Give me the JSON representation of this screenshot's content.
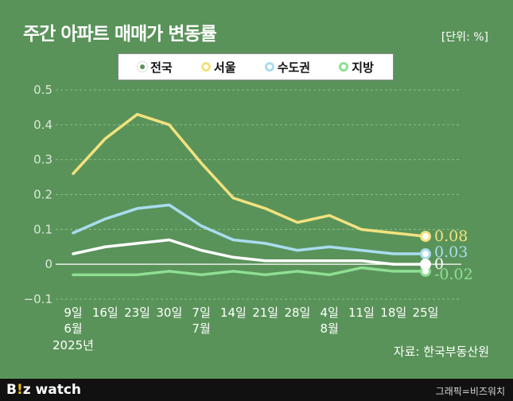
{
  "header": {
    "title": "주간 아파트 매매가 변동률",
    "unit": "[단위: %]"
  },
  "chart_data": {
    "type": "line",
    "title": "주간 아파트 매매가 변동률",
    "unit_label": "[단위: %]",
    "x": [
      "9일",
      "16일",
      "23일",
      "30일",
      "7일",
      "14일",
      "21일",
      "28일",
      "4일",
      "11일",
      "18일",
      "25일"
    ],
    "month_labels": [
      {
        "index": 0,
        "label": "6월"
      },
      {
        "index": 4,
        "label": "7월"
      },
      {
        "index": 8,
        "label": "8월"
      }
    ],
    "year_label": "2025년",
    "yticks": [
      0.5,
      0.4,
      0.3,
      0.2,
      0.1,
      0,
      -0.1
    ],
    "ytick_labels": [
      "0.5",
      "0.4",
      "0.3",
      "0.2",
      "0.1",
      "0",
      "−0.1"
    ],
    "ylim": [
      -0.1,
      0.5
    ],
    "series": [
      {
        "name": "전국",
        "color": "#ffffff",
        "values": [
          0.03,
          0.05,
          0.06,
          0.07,
          0.04,
          0.02,
          0.01,
          0.01,
          0.01,
          0.01,
          0.0,
          0.0
        ],
        "end_label": "0"
      },
      {
        "name": "서울",
        "color": "#f2e27e",
        "values": [
          0.26,
          0.36,
          0.43,
          0.4,
          0.29,
          0.19,
          0.16,
          0.12,
          0.14,
          0.1,
          0.09,
          0.08
        ],
        "end_label": "0.08"
      },
      {
        "name": "수도권",
        "color": "#a9dcef",
        "values": [
          0.09,
          0.13,
          0.16,
          0.17,
          0.11,
          0.07,
          0.06,
          0.04,
          0.05,
          0.04,
          0.03,
          0.03
        ],
        "end_label": "0.03"
      },
      {
        "name": "지방",
        "color": "#8fdf93",
        "values": [
          -0.03,
          -0.03,
          -0.03,
          -0.02,
          -0.03,
          -0.02,
          -0.03,
          -0.02,
          -0.03,
          -0.01,
          -0.02,
          -0.02
        ],
        "end_label": "-0.02"
      }
    ],
    "source": "자료: 한국부동산원"
  },
  "footer": {
    "brand_b": "B",
    "brand_dot": "!",
    "brand_rest": "z watch",
    "credit": "그래픽=비즈워치"
  }
}
